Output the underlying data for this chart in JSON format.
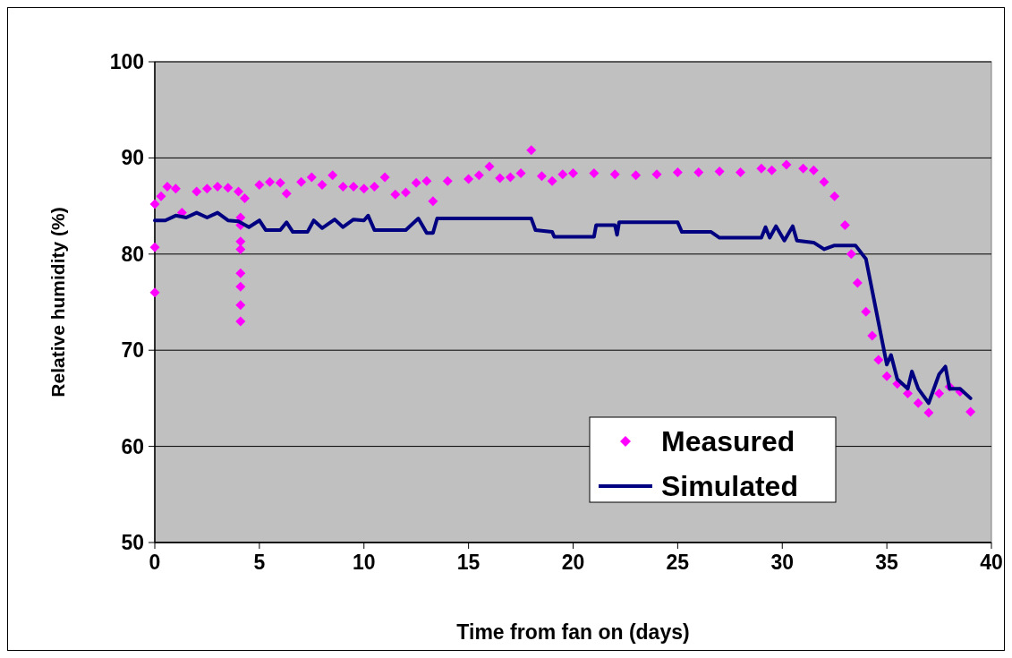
{
  "chart_data": {
    "type": "scatter",
    "xlabel": "Time from fan on (days)",
    "ylabel": "Relative humidity (%)",
    "xlim": [
      0,
      40
    ],
    "xticks": [
      0,
      5,
      10,
      15,
      20,
      25,
      30,
      35,
      40
    ],
    "ylim": [
      50,
      100
    ],
    "yticks": [
      50,
      60,
      70,
      80,
      90,
      100
    ],
    "grid": "y",
    "legend": "bottom right",
    "series": [
      {
        "name": "Measured",
        "marker": "diamond",
        "color": "#ff00ff",
        "x": [
          0,
          0,
          0,
          0.3,
          0.6,
          1,
          1.3,
          2,
          2.5,
          3,
          3.5,
          4,
          4.1,
          4.1,
          4.1,
          4.1,
          4.1,
          4.1,
          4.1,
          4.1,
          4.3,
          5,
          5.5,
          6,
          6.3,
          7,
          7.5,
          8,
          8.5,
          9,
          9.5,
          10,
          10.5,
          11,
          11.5,
          12,
          12.5,
          13,
          13.3,
          14,
          15,
          15.5,
          16,
          16.5,
          17,
          17.5,
          18,
          18.5,
          19,
          19.5,
          20,
          21,
          22,
          23,
          24,
          25,
          26,
          27,
          28,
          29,
          29.5,
          30.2,
          31,
          31.5,
          32,
          32.5,
          33,
          33.3,
          33.6,
          34,
          34.3,
          34.6,
          35,
          35.5,
          36,
          36.5,
          37,
          37.5,
          38,
          38.5,
          39
        ],
        "values": [
          76,
          80.7,
          85.2,
          86,
          87,
          86.8,
          84.3,
          86.5,
          86.8,
          87,
          86.9,
          86.5,
          83.8,
          83,
          81.3,
          80.5,
          78,
          76.6,
          74.7,
          73,
          85.8,
          87.2,
          87.5,
          87.4,
          86.3,
          87.5,
          88,
          87.2,
          88.2,
          87,
          87,
          86.8,
          87,
          88,
          86.2,
          86.4,
          87.4,
          87.6,
          85.5,
          87.6,
          87.8,
          88.2,
          89.1,
          87.9,
          88,
          88.4,
          90.8,
          88.1,
          87.6,
          88.3,
          88.4,
          88.4,
          88.3,
          88.2,
          88.3,
          88.5,
          88.5,
          88.6,
          88.5,
          88.9,
          88.7,
          89.3,
          88.9,
          88.7,
          87.5,
          86,
          83,
          80,
          77,
          74,
          71.5,
          69,
          67.3,
          66.5,
          65.5,
          64.5,
          63.5,
          65.5,
          66.2,
          65.7,
          63.6
        ]
      },
      {
        "name": "Simulated",
        "type": "line",
        "marker": "none",
        "line_style": "solid",
        "color": "#000080",
        "x": [
          0,
          0.5,
          1,
          1.5,
          2,
          2.5,
          3,
          3.5,
          4,
          4.5,
          5,
          5.3,
          6,
          6.3,
          6.6,
          7.3,
          7.6,
          8,
          8.6,
          9,
          9.5,
          10,
          10.2,
          10.5,
          12,
          12.6,
          13,
          13.3,
          13.5,
          18,
          18.2,
          19,
          19.1,
          21,
          21.1,
          22,
          22.1,
          22.2,
          25,
          25.2,
          26.6,
          27,
          29,
          29.2,
          29.4,
          29.7,
          30.1,
          30.5,
          30.7,
          31.5,
          32,
          32.5,
          33.5,
          34,
          34.5,
          35,
          35.2,
          35.5,
          36,
          36.2,
          36.5,
          37,
          37.5,
          37.8,
          38,
          38.5,
          39
        ],
        "values": [
          83.5,
          83.5,
          84,
          83.8,
          84.3,
          83.8,
          84.3,
          83.5,
          83.4,
          82.8,
          83.5,
          82.5,
          82.5,
          83.3,
          82.3,
          82.3,
          83.5,
          82.7,
          83.6,
          82.8,
          83.6,
          83.5,
          84,
          82.5,
          82.5,
          83.7,
          82.2,
          82.2,
          83.7,
          83.7,
          82.5,
          82.3,
          81.8,
          81.8,
          83,
          83,
          82,
          83.3,
          83.3,
          82.3,
          82.3,
          81.7,
          81.7,
          82.8,
          81.7,
          82.9,
          81.4,
          82.9,
          81.4,
          81.2,
          80.5,
          80.9,
          80.9,
          79.5,
          74,
          68.5,
          69.5,
          67,
          66,
          67.8,
          66,
          64.5,
          67.5,
          68.3,
          66,
          66,
          65
        ]
      }
    ]
  }
}
